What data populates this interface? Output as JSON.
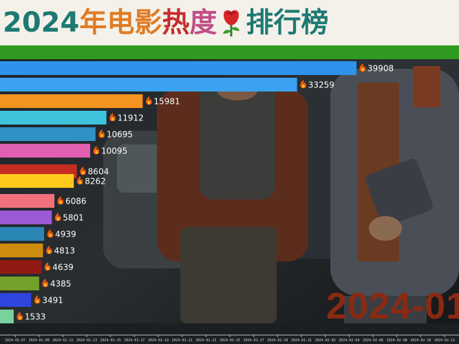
{
  "header": {
    "title_year": "2024",
    "title_part1": "年电影",
    "title_part2": "热",
    "title_part3": "度",
    "title_part4": "排行榜",
    "rose_icon": "rose-icon",
    "band_color": "#2f9a1f"
  },
  "timeline": {
    "current_date": "2024-01"
  },
  "chart_data": {
    "type": "bar",
    "orientation": "horizontal",
    "value_prefix_icon": "fire-icon",
    "values": [
      39908,
      33259,
      15981,
      11912,
      10695,
      10095,
      8604,
      8262,
      6086,
      5801,
      4939,
      4813,
      4639,
      4385,
      3491,
      1533
    ],
    "colors": [
      "#2e93ea",
      "#3aa2f0",
      "#f4931f",
      "#3fc3dd",
      "#2f91c6",
      "#e15fb1",
      "#c62d21",
      "#ffca1c",
      "#f1707c",
      "#9b59d5",
      "#2a86b4",
      "#cf8d0f",
      "#921a14",
      "#75a12a",
      "#2e46dd",
      "#79d29c"
    ],
    "xlim": [
      0,
      39908
    ],
    "x_tick_labels": [
      "2024-01-07",
      "2024-01-09",
      "2024-01-11",
      "2024-01-13",
      "2024-01-15",
      "2024-01-17",
      "2024-01-19",
      "2024-01-21",
      "2024-01-23",
      "2024-01-25",
      "2024-01-27",
      "2024-01-29",
      "2024-01-31",
      "2024-02-02",
      "2024-02-04",
      "2024-02-06",
      "2024-02-08",
      "2024-02-10",
      "2024-02-12"
    ]
  }
}
